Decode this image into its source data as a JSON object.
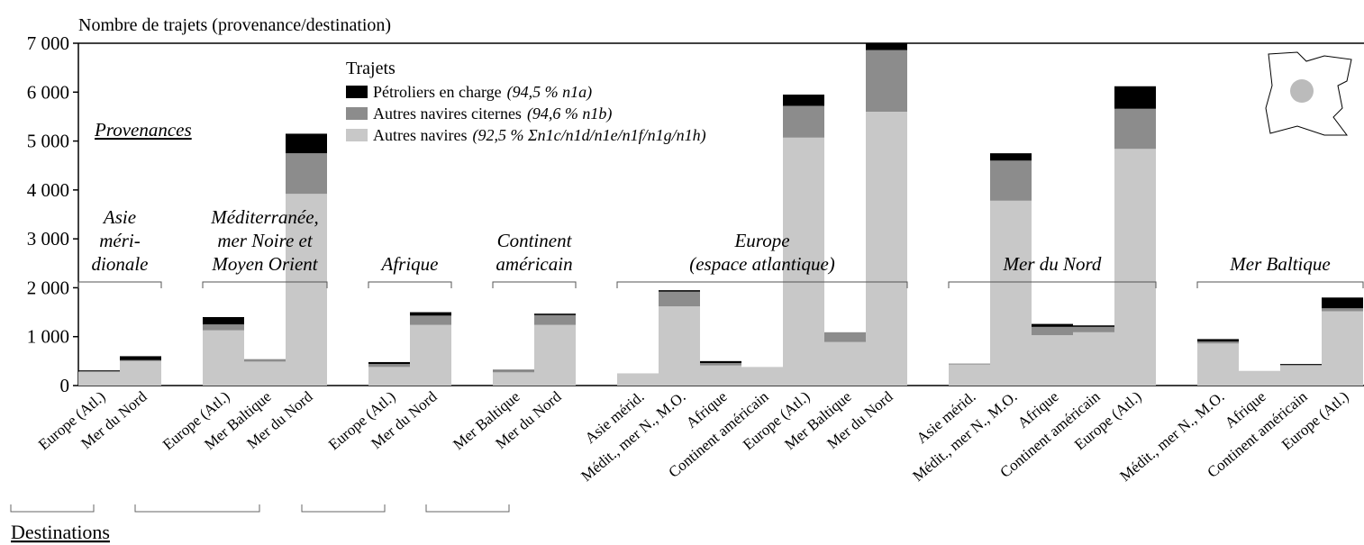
{
  "chart_data": {
    "type": "stacked_bar",
    "y_axis_label": "Nombre de trajets (provenance/destination)",
    "provenance_label": "Provenances",
    "destination_label": "Destinations",
    "legend_title": "Trajets",
    "ylim": [
      0,
      7000
    ],
    "yticks": [
      0,
      {
        "value": 1000,
        "label": "1 000"
      },
      {
        "value": 2000,
        "label": "2 000"
      },
      {
        "value": 3000,
        "label": "3 000"
      },
      {
        "value": 4000,
        "label": "4 000"
      },
      {
        "value": 5000,
        "label": "5 000"
      },
      {
        "value": 6000,
        "label": "6 000"
      },
      {
        "value": 7000,
        "label": "7 000"
      }
    ],
    "groups": [
      {
        "label": [
          "Asie",
          "méri-",
          "dionale"
        ],
        "categories": [
          "Europe (Atl.)",
          "Mer du Nord"
        ]
      },
      {
        "label": [
          "Méditerranée,",
          "mer Noire et",
          "Moyen Orient"
        ],
        "categories": [
          "Europe (Atl.)",
          "Mer Baltique",
          "Mer du Nord"
        ]
      },
      {
        "label": [
          "Afrique"
        ],
        "categories": [
          "Europe (Atl.)",
          "Mer du Nord"
        ]
      },
      {
        "label": [
          "Continent",
          "américain"
        ],
        "categories": [
          "Mer Baltique",
          "Mer du Nord"
        ]
      },
      {
        "label": [
          "Europe",
          "(espace atlantique)"
        ],
        "categories": [
          "Asie mérid.",
          "Médit., mer N., M.O.",
          "Afrique",
          "Continent américain",
          "Europe (Atl.)",
          "Mer Baltique",
          "Mer du Nord"
        ]
      },
      {
        "label": [
          "Mer du Nord"
        ],
        "categories": [
          "Asie mérid.",
          "Médit., mer N., M.O.",
          "Afrique",
          "Continent américain",
          "Europe (Atl.)"
        ]
      },
      {
        "label": [
          "Mer Baltique"
        ],
        "categories": [
          "Médit., mer N., M.O.",
          "Afrique",
          "Continent américain",
          "Europe (Atl.)"
        ]
      }
    ],
    "series": [
      {
        "name": "Pétroliers en charge",
        "note": "(94,5 % n1a)",
        "color": "#000000",
        "values": [
          20,
          80,
          150,
          0,
          400,
          40,
          70,
          10,
          30,
          0,
          30,
          40,
          0,
          230,
          0,
          140,
          0,
          150,
          60,
          30,
          460,
          50,
          0,
          20,
          220
        ]
      },
      {
        "name": "Autres navires citernes",
        "note": "(94,6 % n1b)",
        "color": "#8c8c8c",
        "values": [
          10,
          20,
          120,
          50,
          830,
          60,
          190,
          40,
          200,
          0,
          300,
          50,
          0,
          650,
          200,
          1260,
          20,
          820,
          170,
          110,
          820,
          40,
          0,
          10,
          60
        ]
      },
      {
        "name": "Autres navires",
        "note": "(92,5 % Σn1c/n1d/n1e/n1f/n1g/n1h)",
        "color": "#c8c8c8",
        "values": [
          280,
          500,
          1130,
          490,
          3920,
          380,
          1240,
          270,
          1240,
          250,
          1620,
          410,
          380,
          5070,
          890,
          5600,
          430,
          3780,
          1030,
          1090,
          4840,
          860,
          300,
          410,
          1520
        ]
      }
    ]
  }
}
